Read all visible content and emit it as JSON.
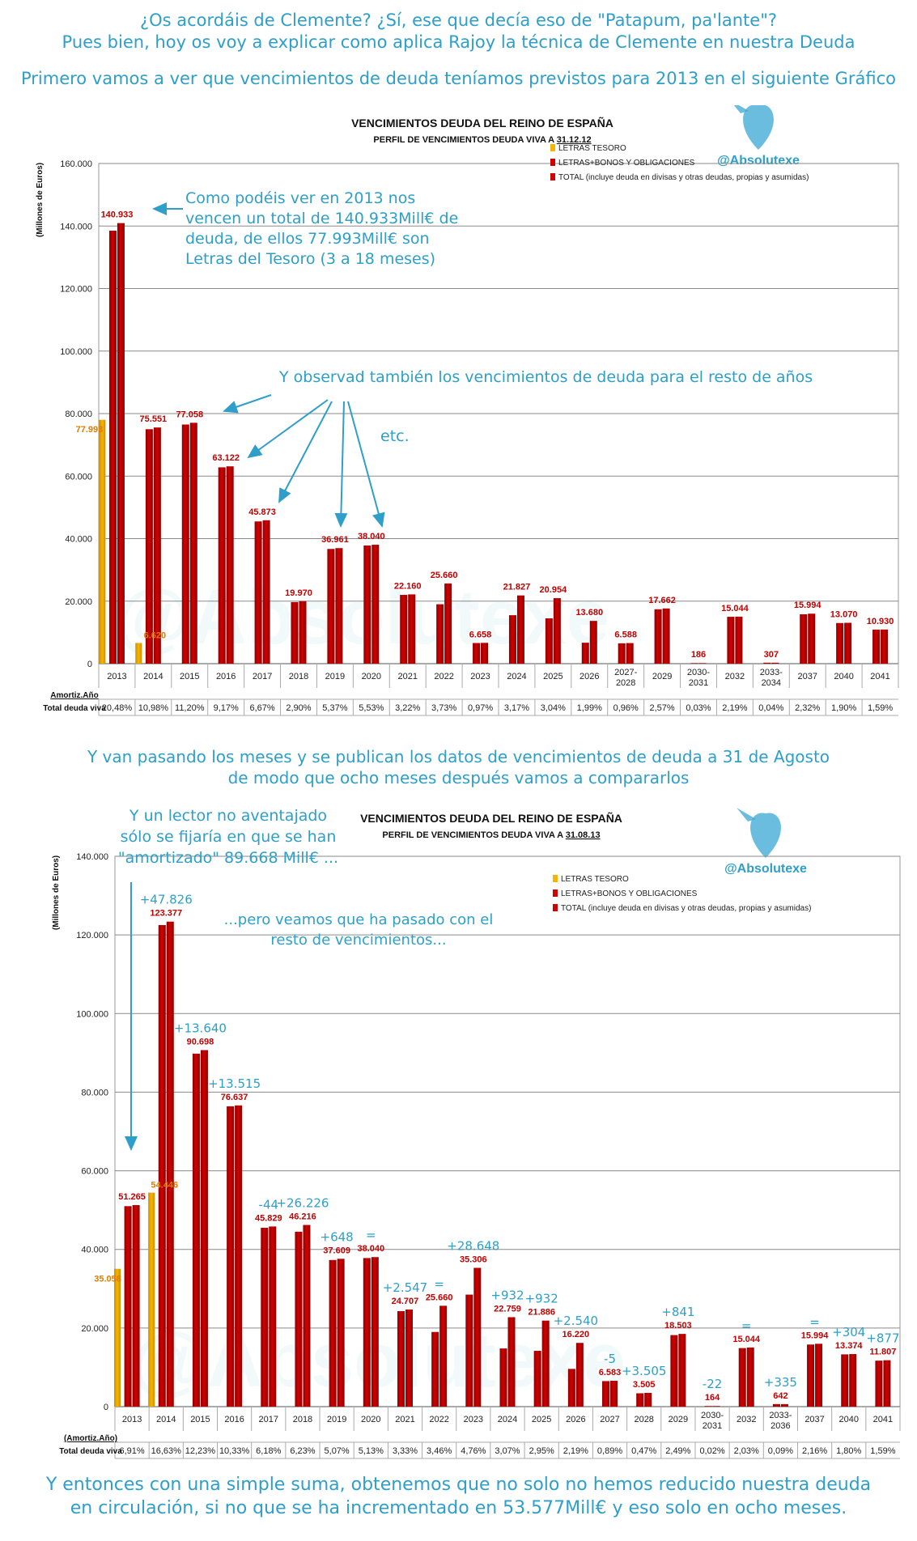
{
  "intro": {
    "line1": "¿Os acordáis de Clemente? ¿Sí, ese que decía eso de \"Patapum, pa'lante\"?",
    "line2": "Pues bien, hoy os voy a explicar como aplica Rajoy la técnica de Clemente en nuestra Deuda",
    "line3": "Primero vamos a ver que vencimientos de deuda teníamos previstos para 2013 en el siguiente Gráfico"
  },
  "middle": {
    "line1": "Y van pasando los meses y se publican los datos de vencimientos de deuda a 31 de Agosto",
    "line2": "de modo que ocho meses después vamos a compararlos"
  },
  "final": {
    "line1": "Y entonces con una simple suma, obtenemos que no solo no hemos reducido nuestra deuda",
    "line2": "en circulación, si no que se ha incrementado en 53.577Mill€ y eso solo en ocho meses."
  },
  "colors": {
    "bar_total": "#d00000",
    "bar_total_dark": "#8f0000",
    "bar_letras": "#f5b400",
    "annotation": "#2e9fc9",
    "value_red": "#c00000",
    "value_orange": "#e07b00"
  },
  "chart_data": [
    {
      "type": "bar",
      "title": "VENCIMIENTOS DEUDA DEL REINO DE ESPAÑA",
      "subtitle_prefix": "PERFIL DE VENCIMIENTOS DEUDA VIVA A ",
      "subtitle_date": "31.12.12",
      "ylabel": "(Millones de Euros)",
      "ylim": [
        0,
        160000
      ],
      "yticks": [
        "0",
        "20.000",
        "40.000",
        "60.000",
        "80.000",
        "100.000",
        "120.000",
        "140.000",
        "160.000"
      ],
      "handle": "@Absolutexe",
      "watermark": "@Absolutexe",
      "legend": [
        "LETRAS TESORO",
        "LETRAS+BONOS Y OBLIGACIONES",
        "TOTAL (incluye deuda en divisas y otras deudas, propias y asumidas)"
      ],
      "categories": [
        "2013",
        "2014",
        "2015",
        "2016",
        "2017",
        "2018",
        "2019",
        "2020",
        "2021",
        "2022",
        "2023",
        "2024",
        "2025",
        "2026",
        "2027-2028",
        "2029",
        "2030-2031",
        "2032",
        "2033-2034",
        "2037",
        "2040",
        "2041"
      ],
      "series": [
        {
          "name": "LETRAS TESORO",
          "values": [
            77993,
            6620,
            null,
            null,
            null,
            null,
            null,
            null,
            null,
            null,
            null,
            null,
            null,
            null,
            null,
            null,
            null,
            null,
            null,
            null,
            null,
            null
          ]
        },
        {
          "name": "LETRAS+BONOS Y OBLIGACIONES",
          "values": [
            138500,
            75000,
            76500,
            62800,
            45500,
            19700,
            36700,
            37800,
            22000,
            19000,
            6600,
            15500,
            14500,
            6700,
            6500,
            17400,
            186,
            15000,
            307,
            15800,
            13000,
            10900
          ]
        },
        {
          "name": "TOTAL (incluye deuda en divisas y otras deudas, propias y asumidas)",
          "values": [
            140933,
            75551,
            77058,
            63122,
            45873,
            19970,
            36961,
            38040,
            22160,
            25660,
            6658,
            21827,
            20954,
            13680,
            6588,
            17662,
            186,
            15044,
            307,
            15994,
            13070,
            10930
          ]
        }
      ],
      "value_labels": [
        "140.933",
        "75.551",
        "77.058",
        "63.122",
        "45.873",
        "19.970",
        "36.961",
        "38.040",
        "22.160",
        "25.660",
        "6.658",
        "21.827",
        "20.954",
        "13.680",
        "6.588",
        "17.662",
        "186",
        "15.044",
        "307",
        "15.994",
        "13.070",
        "10.930"
      ],
      "letras_labels": [
        "77.993",
        "6.620"
      ],
      "row_labels": [
        "Amortiz.Año",
        "Total deuda viva"
      ],
      "pct": [
        "20,48%",
        "10,98%",
        "11,20%",
        "9,17%",
        "6,67%",
        "2,90%",
        "5,37%",
        "5,53%",
        "3,22%",
        "3,73%",
        "0,97%",
        "3,17%",
        "3,04%",
        "1,99%",
        "0,96%",
        "2,57%",
        "0,03%",
        "2,19%",
        "0,04%",
        "2,32%",
        "1,90%",
        "1,59%"
      ],
      "annotations": [
        {
          "text": [
            "Como podéis ver en 2013 nos",
            "vencen un total de 140.933Mill€ de",
            "deuda, de ellos 77.993Mill€ son",
            "Letras del Tesoro (3 a 18 meses)"
          ]
        },
        {
          "text": [
            "Y observad también los vencimientos de deuda para el resto de años"
          ]
        },
        {
          "text": [
            "etc."
          ]
        }
      ]
    },
    {
      "type": "bar",
      "title": "VENCIMIENTOS DEUDA DEL REINO DE ESPAÑA",
      "subtitle_prefix": "PERFIL DE VENCIMIENTOS DEUDA VIVA A ",
      "subtitle_date": "31.08.13",
      "ylabel": "(Millones de Euros)",
      "ylim": [
        0,
        140000
      ],
      "yticks": [
        "0",
        "20.000",
        "40.000",
        "60.000",
        "80.000",
        "100.000",
        "120.000",
        "140.000"
      ],
      "handle": "@Absolutexe",
      "watermark": "@Absolutexe",
      "legend": [
        "LETRAS TESORO",
        "LETRAS+BONOS Y OBLIGACIONES",
        "TOTAL (incluye deuda en divisas y otras deudas, propias y asumidas)"
      ],
      "categories": [
        "2013",
        "2014",
        "2015",
        "2016",
        "2017",
        "2018",
        "2019",
        "2020",
        "2021",
        "2022",
        "2023",
        "2024",
        "2025",
        "2026",
        "2027",
        "2028",
        "2029",
        "2030-2031",
        "2032",
        "2033-2036",
        "2037",
        "2040",
        "2041"
      ],
      "series": [
        {
          "name": "LETRAS TESORO",
          "values": [
            35058,
            54446,
            null,
            null,
            null,
            null,
            null,
            null,
            null,
            null,
            null,
            null,
            null,
            null,
            null,
            null,
            null,
            null,
            null,
            null,
            null,
            null,
            null
          ]
        },
        {
          "name": "LETRAS+BONOS Y OBLIGACIONES",
          "values": [
            51000,
            122500,
            89800,
            76400,
            45500,
            44500,
            37300,
            37800,
            24300,
            19000,
            28500,
            14800,
            14200,
            9600,
            6500,
            3400,
            18200,
            164,
            14900,
            642,
            15800,
            13300,
            11700
          ]
        },
        {
          "name": "TOTAL (incluye deuda en divisas y otras deudas, propias y asumidas)",
          "values": [
            51265,
            123377,
            90698,
            76637,
            45829,
            46216,
            37609,
            38040,
            24707,
            25660,
            35306,
            22759,
            21886,
            16220,
            6583,
            3505,
            18503,
            164,
            15044,
            642,
            15994,
            13374,
            11807
          ]
        }
      ],
      "value_labels": [
        "51.265",
        "123.377",
        "90.698",
        "76.637",
        "45.829",
        "46.216",
        "37.609",
        "38.040",
        "24.707",
        "25.660",
        "35.306",
        "22.759",
        "21.886",
        "16.220",
        "6.583",
        "3.505",
        "18.503",
        "164",
        "15.044",
        "642",
        "15.994",
        "13.374",
        "11.807"
      ],
      "letras_labels": [
        "35.058",
        "54.446"
      ],
      "deltas": [
        "",
        "+47.826",
        "+13.640",
        "+13.515",
        "-44",
        "+26.226",
        "+648",
        "=",
        "+2.547",
        "=",
        "+28.648",
        "+932",
        "+932",
        "+2.540",
        "-5",
        "+3.505",
        "+841",
        "-22",
        "=",
        "+335",
        "=",
        "+304",
        "+877"
      ],
      "row_labels": [
        "(Amortiz.Año)",
        "Total deuda viva"
      ],
      "pct": [
        "6,91%",
        "16,63%",
        "12,23%",
        "10,33%",
        "6,18%",
        "6,23%",
        "5,07%",
        "5,13%",
        "3,33%",
        "3,46%",
        "4,76%",
        "3,07%",
        "2,95%",
        "2,19%",
        "0,89%",
        "0,47%",
        "2,49%",
        "0,02%",
        "2,03%",
        "0,09%",
        "2,16%",
        "1,80%",
        "1,59%"
      ],
      "annotations": [
        {
          "text": [
            "Y un lector no aventajado",
            "sólo se fijaría en que se han",
            "\"amortizado\" 89.668 Mill€ ..."
          ]
        },
        {
          "text": [
            "...pero veamos que ha pasado con el",
            "resto de vencimientos..."
          ]
        }
      ]
    }
  ]
}
